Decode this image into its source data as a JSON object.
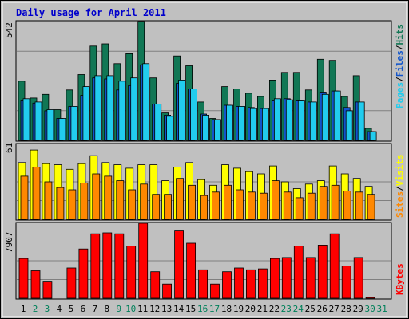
{
  "chart_data": {
    "type": "bar",
    "title": "Daily usage for April 2011",
    "categories": [
      "1",
      "2",
      "3",
      "4",
      "5",
      "6",
      "7",
      "8",
      "9",
      "10",
      "11",
      "12",
      "13",
      "14",
      "15",
      "16",
      "17",
      "18",
      "19",
      "20",
      "21",
      "22",
      "23",
      "24",
      "25",
      "26",
      "27",
      "28",
      "29",
      "30",
      "31"
    ],
    "weekend_days": [
      "2",
      "3",
      "9",
      "10",
      "16",
      "17",
      "23",
      "24",
      "30",
      "31"
    ],
    "panels": [
      {
        "id": "top",
        "max_label": "542",
        "ylim": [
          0,
          542
        ],
        "legend": [
          "Pages",
          "/",
          "Files",
          "/",
          "Hits"
        ],
        "series": [
          {
            "name": "Hits",
            "color": "#117755",
            "values": [
              270,
              193,
              210,
              140,
              230,
              300,
              430,
              440,
              350,
              395,
              542,
              285,
              125,
              385,
              340,
              175,
              100,
              245,
              235,
              215,
              200,
              275,
              310,
              310,
              230,
              370,
              365,
              200,
              295,
              55,
              0
            ]
          },
          {
            "name": "Files",
            "color": "#1155cc",
            "values": [
              180,
              170,
              135,
              100,
              155,
              205,
              285,
              280,
              230,
              250,
              345,
              165,
              115,
              260,
              235,
              120,
              95,
              160,
              155,
              150,
              145,
              180,
              190,
              180,
              175,
              220,
              225,
              150,
              175,
              40,
              0
            ]
          },
          {
            "name": "Pages",
            "color": "#22ccee",
            "values": [
              190,
              175,
              140,
              100,
              155,
              245,
              295,
              295,
              270,
              285,
              350,
              165,
              110,
              275,
              235,
              115,
              95,
              160,
              155,
              145,
              145,
              190,
              185,
              180,
              175,
              210,
              225,
              135,
              175,
              40,
              0
            ]
          }
        ]
      },
      {
        "id": "middle",
        "max_label": "61",
        "ylim": [
          0,
          66
        ],
        "legend": [
          "Sites",
          "/",
          "Visits"
        ],
        "series": [
          {
            "name": "Visits",
            "color": "#ffff00",
            "values": [
              50,
              61,
              49,
              48,
              44,
              49,
              56,
              50,
              48,
              45,
              48,
              48,
              34,
              46,
              50,
              35,
              30,
              48,
              45,
              42,
              40,
              47,
              33,
              27,
              31,
              34,
              47,
              40,
              36,
              29,
              0
            ]
          },
          {
            "name": "Sites",
            "color": "#ff8800",
            "values": [
              38,
              46,
              33,
              28,
              26,
              32,
              40,
              38,
              34,
              26,
              31,
              22,
              22,
              36,
              30,
              21,
              24,
              30,
              26,
              24,
              23,
              34,
              24,
              19,
              23,
              29,
              30,
              25,
              24,
              22,
              0
            ]
          }
        ]
      },
      {
        "id": "bottom",
        "max_label": "7907",
        "ylim": [
          0,
          7907
        ],
        "legend": [
          "KBytes"
        ],
        "series": [
          {
            "name": "KBytes",
            "color": "#ff0000",
            "values": [
              4200,
              2900,
              1800,
              0,
              3200,
              5200,
              6800,
              6900,
              6800,
              5500,
              7907,
              2800,
              1500,
              7100,
              5800,
              3000,
              1500,
              2800,
              3200,
              3000,
              3100,
              4200,
              4300,
              5500,
              4300,
              5600,
              6800,
              3400,
              4300,
              100,
              0
            ]
          }
        ]
      }
    ]
  }
}
